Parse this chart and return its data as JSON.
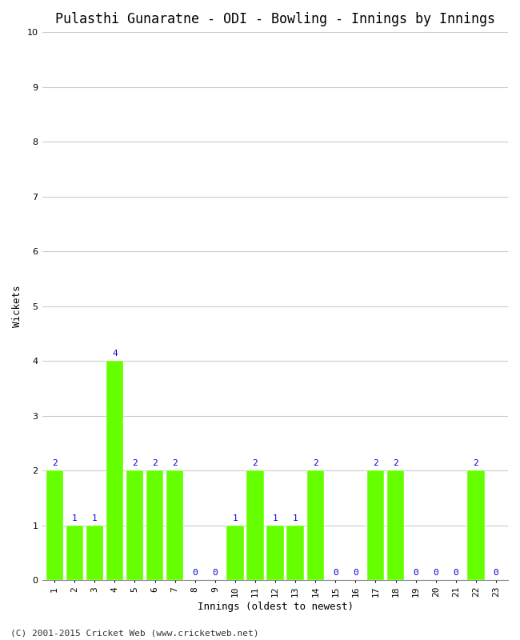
{
  "title": "Pulasthi Gunaratne - ODI - Bowling - Innings by Innings",
  "xlabel": "Innings (oldest to newest)",
  "ylabel": "Wickets",
  "innings": [
    1,
    2,
    3,
    4,
    5,
    6,
    7,
    8,
    9,
    10,
    11,
    12,
    13,
    14,
    15,
    16,
    17,
    18,
    19,
    20,
    21,
    22,
    23
  ],
  "wickets": [
    2,
    1,
    1,
    4,
    2,
    2,
    2,
    0,
    0,
    1,
    2,
    1,
    1,
    2,
    0,
    0,
    2,
    2,
    0,
    0,
    0,
    2,
    0
  ],
  "bar_color": "#66ff00",
  "label_color": "#0000cc",
  "background_color": "#ffffff",
  "ylim": [
    0,
    10
  ],
  "yticks": [
    0,
    1,
    2,
    3,
    4,
    5,
    6,
    7,
    8,
    9,
    10
  ],
  "grid_color": "#cccccc",
  "title_fontsize": 12,
  "axis_label_fontsize": 9,
  "tick_fontsize": 8,
  "label_fontsize": 8,
  "footer_text": "(C) 2001-2015 Cricket Web (www.cricketweb.net)"
}
